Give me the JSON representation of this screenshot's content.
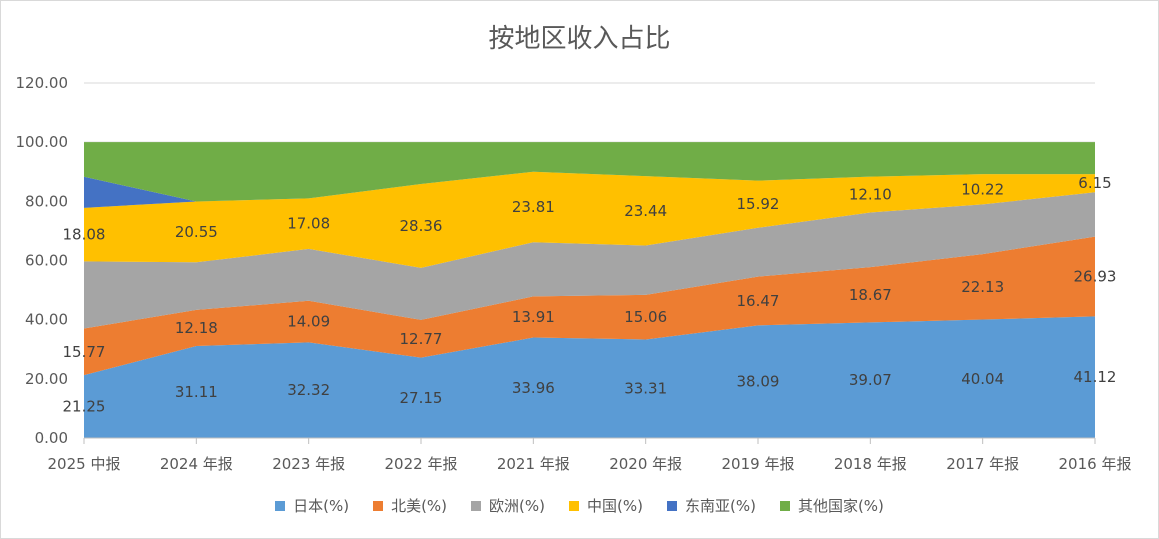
{
  "chart_data": {
    "type": "area",
    "stacked": true,
    "title": "按地区收入占比",
    "categories": [
      "2025 中报",
      "2024 年报",
      "2023 年报",
      "2022 年报",
      "2021 年报",
      "2020 年报",
      "2019 年报",
      "2018 年报",
      "2017 年报",
      "2016 年报"
    ],
    "ylim": [
      0,
      120
    ],
    "yticks": [
      "0.00",
      "20.00",
      "40.00",
      "60.00",
      "80.00",
      "100.00",
      "120.00"
    ],
    "grid": true,
    "legend_position": "bottom",
    "series": [
      {
        "name": "日本(%)",
        "color": "#5B9BD5",
        "values": [
          21.25,
          31.11,
          32.32,
          27.15,
          33.96,
          33.31,
          38.09,
          39.07,
          40.04,
          41.12
        ],
        "labels": [
          "21.25",
          "31.11",
          "32.32",
          "27.15",
          "33.96",
          "33.31",
          "38.09",
          "39.07",
          "40.04",
          "41.12"
        ]
      },
      {
        "name": "北美(%)",
        "color": "#ED7D31",
        "values": [
          15.77,
          12.18,
          14.09,
          12.77,
          13.91,
          15.06,
          16.47,
          18.67,
          22.13,
          26.93
        ],
        "labels": [
          "15.77",
          "12.18",
          "14.09",
          "12.77",
          "13.91",
          "15.06",
          "16.47",
          "18.67",
          "22.13",
          "26.93"
        ]
      },
      {
        "name": "欧洲(%)",
        "color": "#A5A5A5",
        "values": [
          22.7,
          16.1,
          17.5,
          17.6,
          18.3,
          16.7,
          16.5,
          18.5,
          16.8,
          15.0
        ],
        "labels": []
      },
      {
        "name": "中国(%)",
        "color": "#FFC000",
        "values": [
          18.08,
          20.55,
          17.08,
          28.36,
          23.81,
          23.44,
          15.92,
          12.1,
          10.22,
          6.15
        ],
        "labels": [
          "18.08",
          "20.55",
          "17.08",
          "28.36",
          "23.81",
          "23.44",
          "15.92",
          "12.10",
          "10.22",
          "6.15"
        ]
      },
      {
        "name": "东南亚(%)",
        "color": "#4472C4",
        "values": [
          10.5,
          0.0,
          0.0,
          0.0,
          0.0,
          0.0,
          0.0,
          0.0,
          0.0,
          0.0
        ],
        "labels": []
      },
      {
        "name": "其他国家(%)",
        "color": "#70AD47",
        "values": [
          11.7,
          20.06,
          19.01,
          14.12,
          10.02,
          11.49,
          13.02,
          11.66,
          10.81,
          10.8
        ],
        "labels": []
      }
    ]
  }
}
